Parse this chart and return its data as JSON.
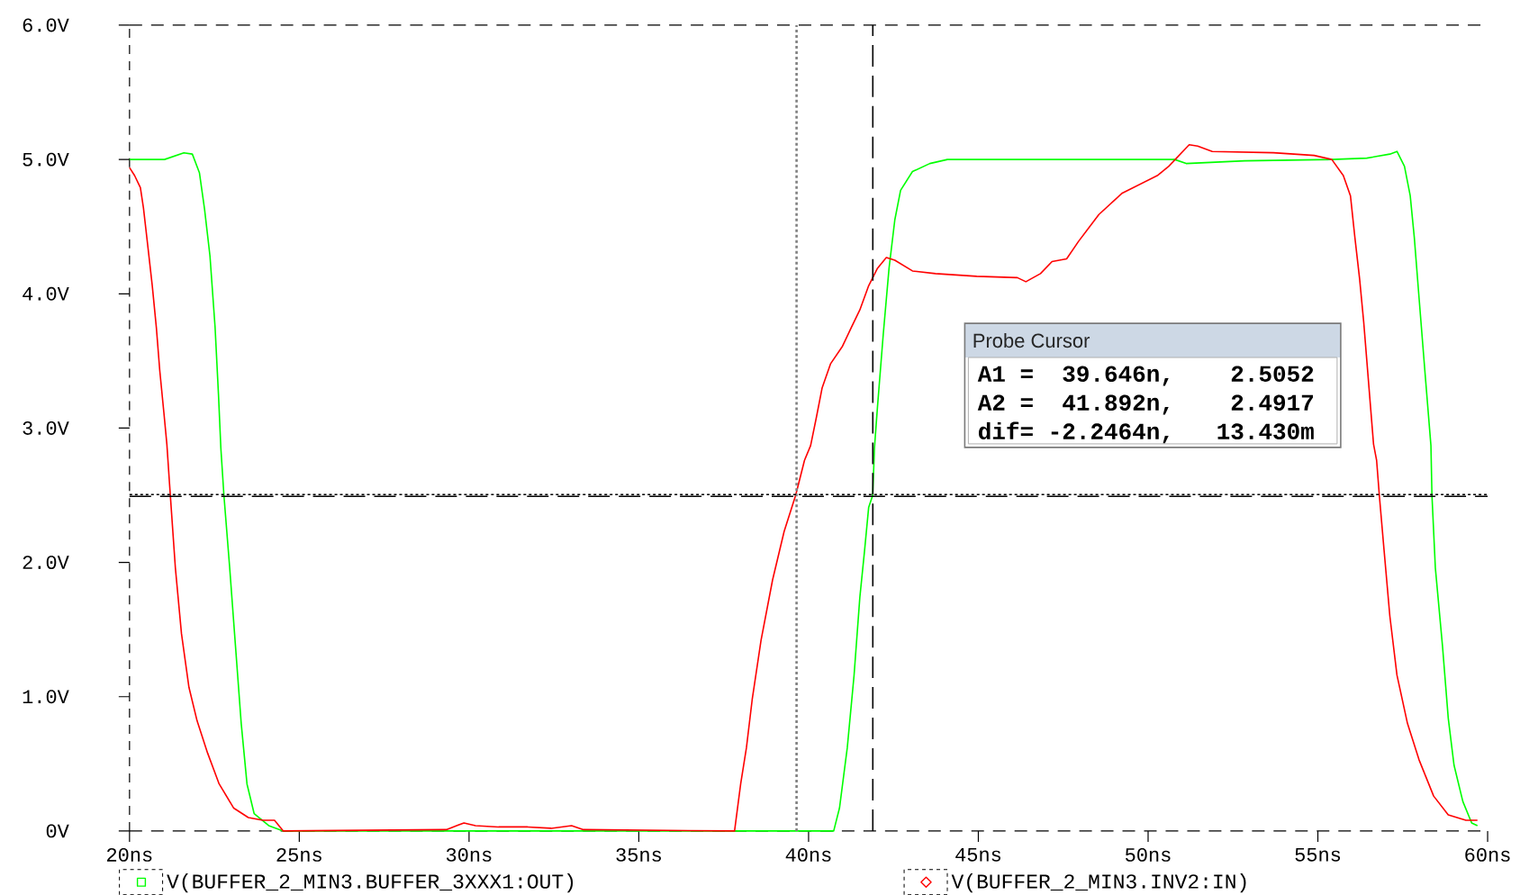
{
  "chart_data": {
    "type": "line",
    "xlim": [
      20,
      60
    ],
    "xticks": [
      {
        "value": 20,
        "label": "20ns"
      },
      {
        "value": 25,
        "label": "25ns"
      },
      {
        "value": 30,
        "label": "30ns"
      },
      {
        "value": 35,
        "label": "35ns"
      },
      {
        "value": 40,
        "label": "40ns"
      },
      {
        "value": 45,
        "label": "45ns"
      },
      {
        "value": 50,
        "label": "50ns"
      },
      {
        "value": 55,
        "label": "55ns"
      },
      {
        "value": 60,
        "label": "60ns"
      }
    ],
    "ylim": [
      0,
      6
    ],
    "yticks": [
      {
        "value": 0,
        "label": "0V"
      },
      {
        "value": 1,
        "label": "1.0V"
      },
      {
        "value": 2,
        "label": "2.0V"
      },
      {
        "value": 3,
        "label": "3.0V"
      },
      {
        "value": 4,
        "label": "4.0V"
      },
      {
        "value": 5,
        "label": "5.0V"
      },
      {
        "value": 6,
        "label": "6.0V"
      }
    ],
    "series": [
      {
        "name": "V(BUFFER_2_MIN3.BUFFER_3XXX1:OUT)",
        "color": "#00ff00",
        "x": [
          20,
          21.03,
          21.6,
          21.85,
          22.06,
          22.21,
          22.37,
          22.52,
          22.62,
          22.69,
          22.78,
          22.95,
          23.12,
          23.29,
          23.46,
          23.67,
          24.1,
          24.53,
          40.74,
          40.91,
          41.14,
          41.34,
          41.51,
          41.65,
          41.77,
          41.89,
          41.94,
          42.03,
          42.2,
          42.37,
          42.54,
          42.71,
          43.06,
          43.57,
          44.09,
          46.15,
          49.06,
          50.78,
          51.12,
          52.84,
          55.41,
          56.44,
          57.12,
          57.33,
          57.55,
          57.72,
          57.84,
          57.98,
          58.15,
          58.33,
          58.36,
          58.46,
          58.67,
          58.84,
          59.01,
          59.27,
          59.53,
          59.7
        ],
        "values": [
          5.0,
          5.0,
          5.05,
          5.04,
          4.9,
          4.63,
          4.28,
          3.75,
          3.25,
          2.85,
          2.5,
          1.96,
          1.38,
          0.8,
          0.35,
          0.13,
          0.04,
          0,
          0,
          0.17,
          0.62,
          1.16,
          1.74,
          2.09,
          2.41,
          2.5,
          2.85,
          3.16,
          3.7,
          4.19,
          4.55,
          4.77,
          4.91,
          4.97,
          5.0,
          5.0,
          5.0,
          5.0,
          4.97,
          4.99,
          5.0,
          5.01,
          5.04,
          5.06,
          4.95,
          4.73,
          4.42,
          3.97,
          3.43,
          2.87,
          2.5,
          1.96,
          1.38,
          0.84,
          0.49,
          0.22,
          0.06,
          0.04
        ]
      },
      {
        "name": "V(BUFFER_2_MIN3.INV2:IN)",
        "color": "#ff0000",
        "x": [
          20,
          20.15,
          20.32,
          20.41,
          20.55,
          20.67,
          20.79,
          20.89,
          21.01,
          21.1,
          21.18,
          21.35,
          21.53,
          21.75,
          21.99,
          22.3,
          22.64,
          23.07,
          23.5,
          23.93,
          24.27,
          24.53,
          29.33,
          29.85,
          30.19,
          30.87,
          31.73,
          32.42,
          33.02,
          33.37,
          37.82,
          38.0,
          38.17,
          38.34,
          38.6,
          38.94,
          39.28,
          39.62,
          39.88,
          40.06,
          40.23,
          40.4,
          40.65,
          41.0,
          41.26,
          41.51,
          41.77,
          42.03,
          42.29,
          42.54,
          43.06,
          43.74,
          44.95,
          46.15,
          46.4,
          46.83,
          47.17,
          47.6,
          47.95,
          48.55,
          49.24,
          50.27,
          50.61,
          51.21,
          51.46,
          51.89,
          53.69,
          54.89,
          55.41,
          55.75,
          55.96,
          56.09,
          56.23,
          56.35,
          56.64,
          56.73,
          56.81,
          56.95,
          57.12,
          57.33,
          57.64,
          57.98,
          58.41,
          58.84,
          59.36,
          59.7
        ],
        "values": [
          4.94,
          4.88,
          4.79,
          4.64,
          4.33,
          4.06,
          3.75,
          3.43,
          3.12,
          2.88,
          2.58,
          1.96,
          1.47,
          1.07,
          0.82,
          0.58,
          0.35,
          0.17,
          0.1,
          0.08,
          0.08,
          0,
          0.01,
          0.06,
          0.04,
          0.03,
          0.03,
          0.02,
          0.04,
          0.01,
          0,
          0.35,
          0.62,
          0.98,
          1.42,
          1.87,
          2.23,
          2.5,
          2.76,
          2.87,
          3.08,
          3.3,
          3.48,
          3.61,
          3.75,
          3.88,
          4.06,
          4.19,
          4.27,
          4.25,
          4.17,
          4.15,
          4.13,
          4.12,
          4.09,
          4.15,
          4.24,
          4.26,
          4.39,
          4.59,
          4.75,
          4.88,
          4.95,
          5.11,
          5.1,
          5.06,
          5.05,
          5.03,
          5.0,
          4.88,
          4.73,
          4.42,
          4.11,
          3.79,
          2.88,
          2.76,
          2.5,
          2.09,
          1.6,
          1.16,
          0.8,
          0.53,
          0.26,
          0.12,
          0.08,
          0.08
        ]
      }
    ],
    "legend": "bottom",
    "ref_lines": [
      {
        "axis": "x",
        "value": 39.646,
        "color": "#808080",
        "line_style": "dotted"
      },
      {
        "axis": "x",
        "value": 41.892,
        "color": "#000000",
        "line_style": "dashed"
      },
      {
        "axis": "y",
        "value": 2.5052,
        "color": "#000000",
        "line_style": "dotted"
      },
      {
        "axis": "y",
        "value": 2.4917,
        "color": "#000000",
        "line_style": "dashed"
      }
    ],
    "annotations": [
      "Probe Cursor",
      "A1 =",
      "39.646n,",
      "2.5052",
      "A2 =",
      "41.892n,",
      "2.4917",
      "dif=",
      "-2.2464n,",
      "13.430m"
    ]
  }
}
